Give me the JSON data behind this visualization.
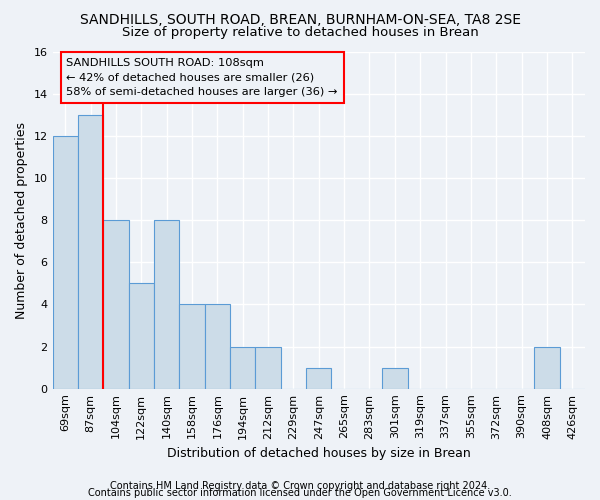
{
  "title1": "SANDHILLS, SOUTH ROAD, BREAN, BURNHAM-ON-SEA, TA8 2SE",
  "title2": "Size of property relative to detached houses in Brean",
  "xlabel": "Distribution of detached houses by size in Brean",
  "ylabel": "Number of detached properties",
  "categories": [
    "69sqm",
    "87sqm",
    "104sqm",
    "122sqm",
    "140sqm",
    "158sqm",
    "176sqm",
    "194sqm",
    "212sqm",
    "229sqm",
    "247sqm",
    "265sqm",
    "283sqm",
    "301sqm",
    "319sqm",
    "337sqm",
    "355sqm",
    "372sqm",
    "390sqm",
    "408sqm",
    "426sqm"
  ],
  "values": [
    12,
    13,
    8,
    5,
    8,
    4,
    4,
    2,
    2,
    0,
    1,
    0,
    0,
    1,
    0,
    0,
    0,
    0,
    0,
    2,
    0
  ],
  "bar_color": "#ccdce8",
  "bar_edge_color": "#5b9bd5",
  "ylim": [
    0,
    16
  ],
  "yticks": [
    0,
    2,
    4,
    6,
    8,
    10,
    12,
    14,
    16
  ],
  "red_line_index": 2,
  "annotation_title": "SANDHILLS SOUTH ROAD: 108sqm",
  "annotation_line1": "← 42% of detached houses are smaller (26)",
  "annotation_line2": "58% of semi-detached houses are larger (36) →",
  "footer1": "Contains HM Land Registry data © Crown copyright and database right 2024.",
  "footer2": "Contains public sector information licensed under the Open Government Licence v3.0.",
  "background_color": "#eef2f7",
  "grid_color": "#ffffff",
  "title_fontsize": 10,
  "subtitle_fontsize": 9.5,
  "axis_label_fontsize": 9,
  "tick_fontsize": 8,
  "footer_fontsize": 7
}
